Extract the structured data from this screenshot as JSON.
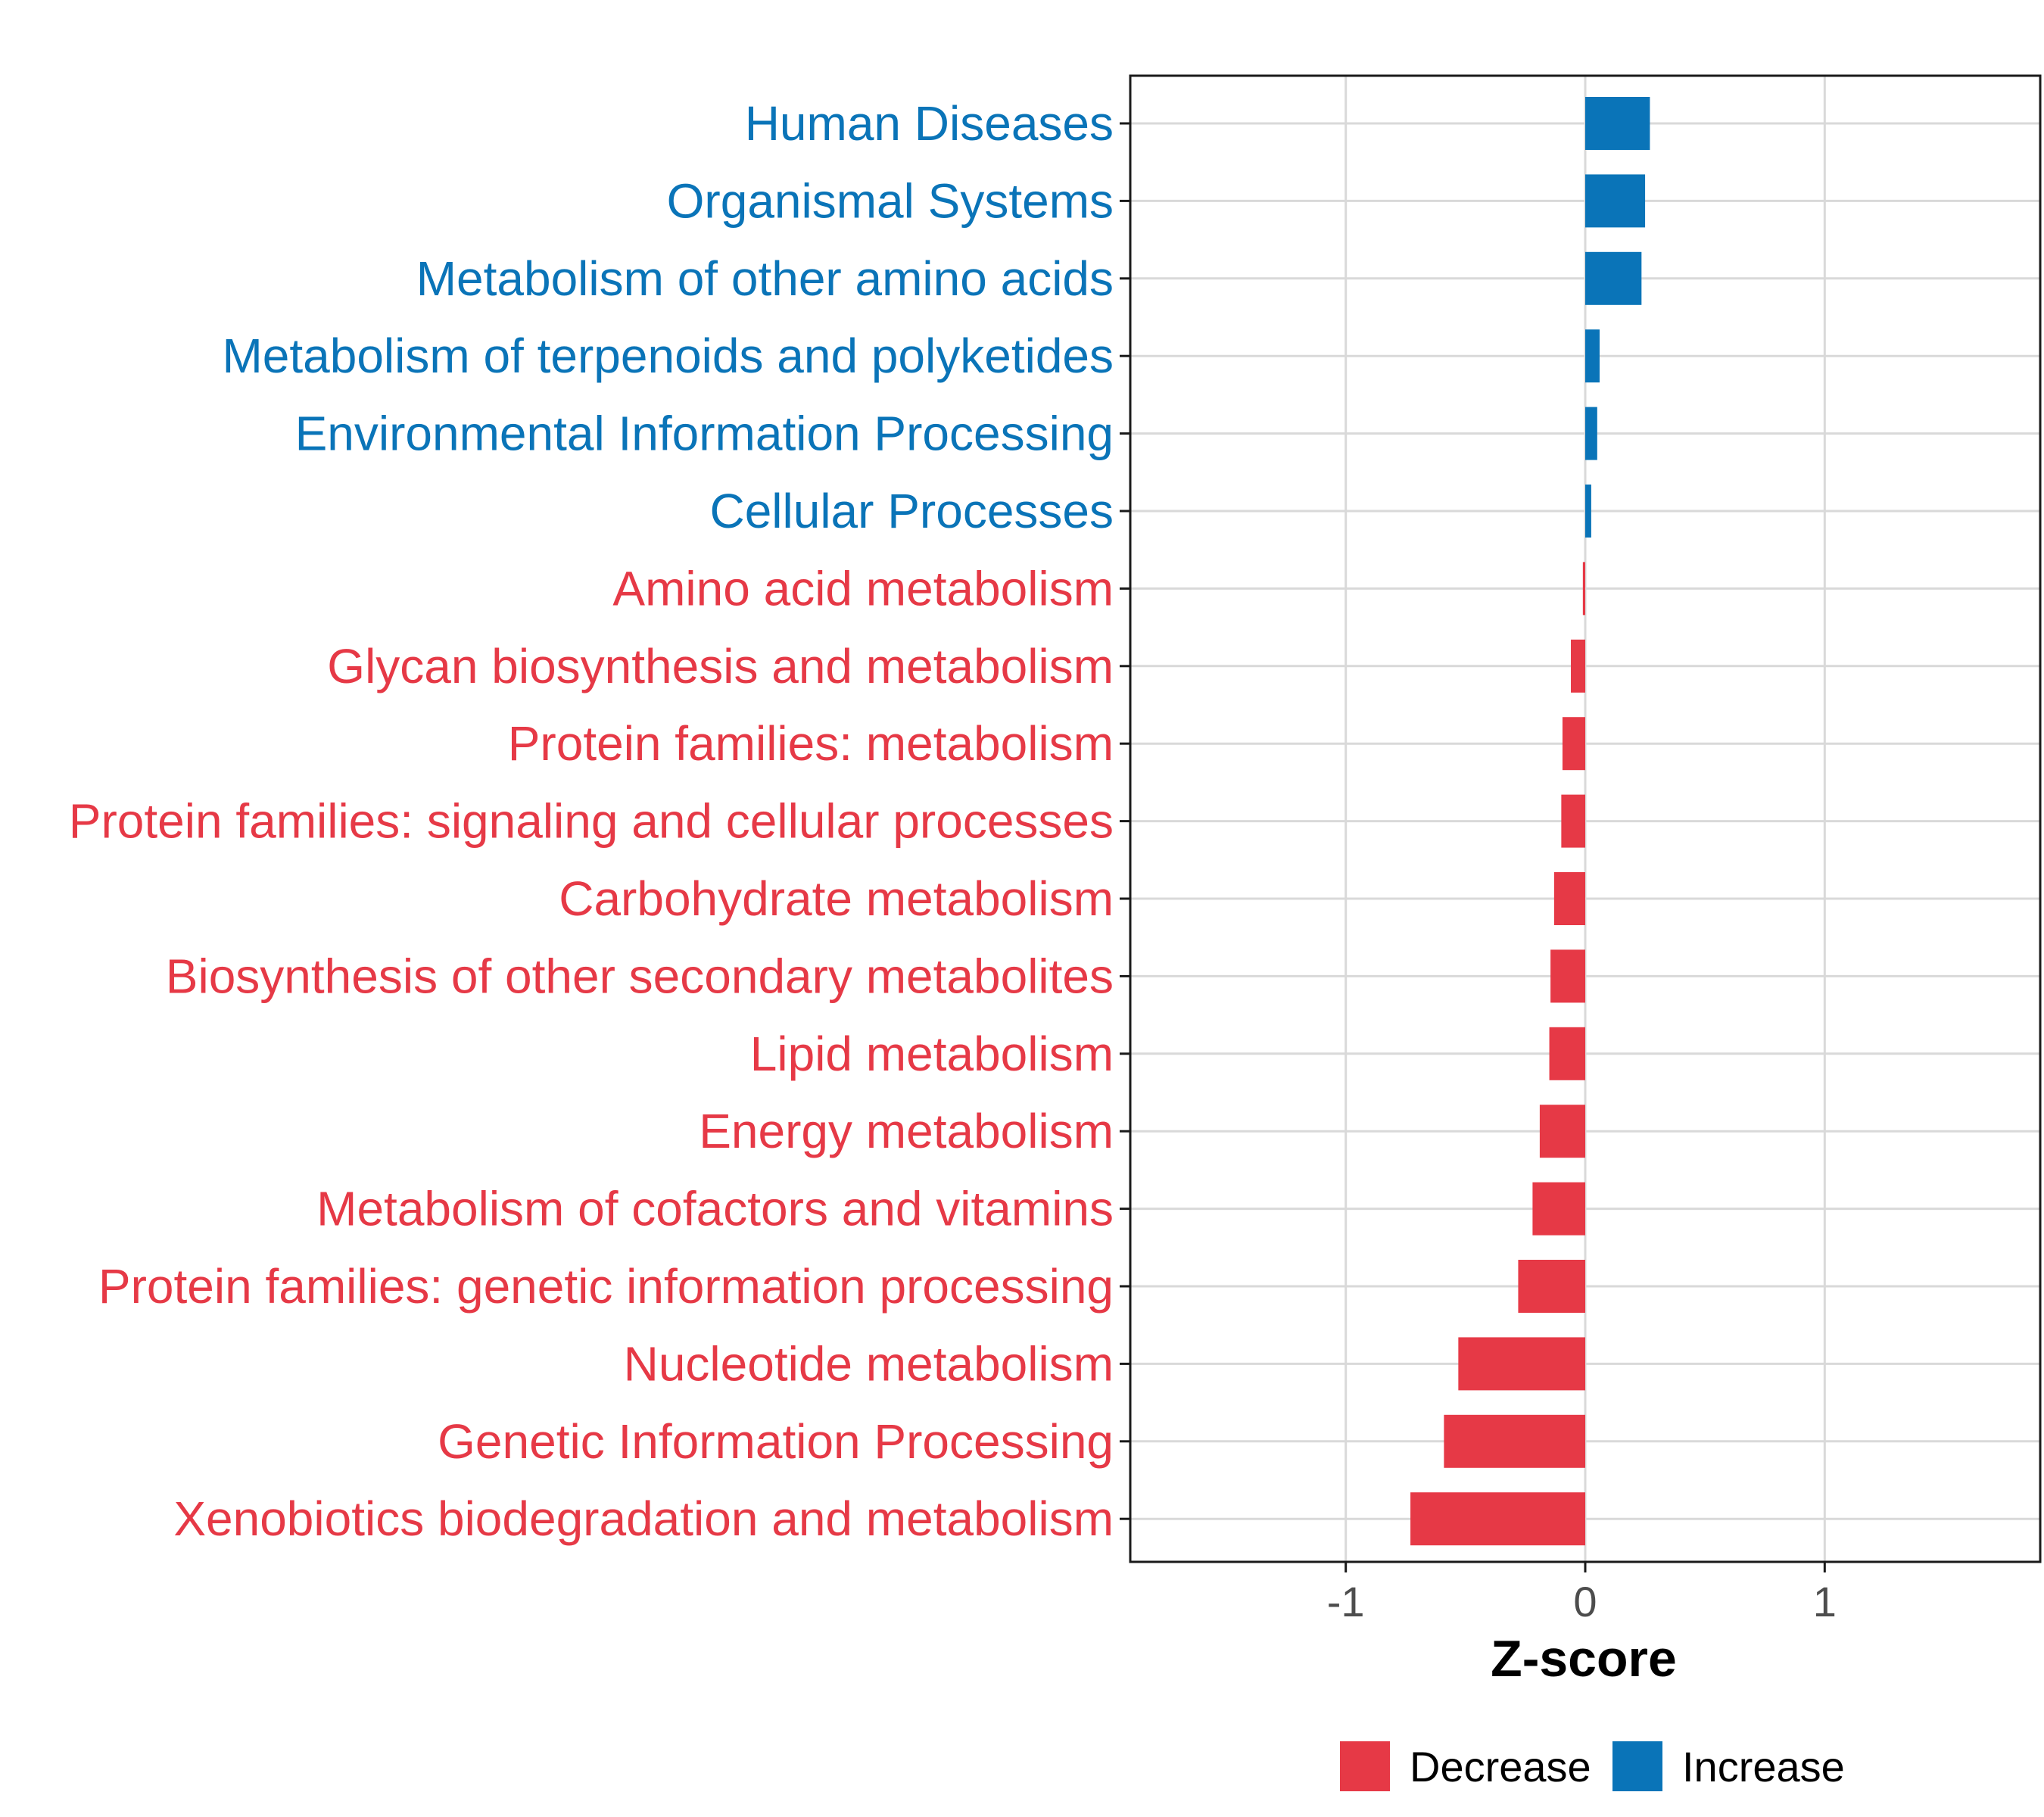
{
  "chart_data": {
    "type": "bar",
    "orientation": "horizontal",
    "xlabel": "Z-score",
    "xlim": [
      -1.9,
      1.9
    ],
    "xticks": [
      -1,
      0,
      1
    ],
    "xtick_labels": [
      "-1",
      "0",
      "1"
    ],
    "grid": true,
    "legend_position": "bottom",
    "colors": {
      "Decrease": "#e63946",
      "Increase": "#0a74b8"
    },
    "legend": [
      {
        "label": "Decrease",
        "color": "#e63946"
      },
      {
        "label": "Increase",
        "color": "#0a74b8"
      }
    ],
    "categories": [
      "Human Diseases",
      "Organismal Systems",
      "Metabolism of other amino acids",
      "Metabolism of terpenoids and polyketides",
      "Environmental Information Processing",
      "Cellular Processes",
      "Amino acid metabolism",
      "Glycan biosynthesis and metabolism",
      "Protein families: metabolism",
      "Protein families: signaling and cellular processes",
      "Carbohydrate metabolism",
      "Biosynthesis of other secondary metabolites",
      "Lipid metabolism",
      "Energy metabolism",
      "Metabolism of cofactors and vitamins",
      "Protein families: genetic information processing",
      "Nucleotide metabolism",
      "Genetic Information Processing",
      "Xenobiotics biodegradation and metabolism"
    ],
    "values": [
      0.27,
      0.25,
      0.235,
      0.06,
      0.05,
      0.025,
      -0.01,
      -0.06,
      -0.095,
      -0.1,
      -0.13,
      -0.145,
      -0.15,
      -0.19,
      -0.22,
      -0.28,
      -0.53,
      -0.59,
      -0.73
    ],
    "direction": [
      "Increase",
      "Increase",
      "Increase",
      "Increase",
      "Increase",
      "Increase",
      "Decrease",
      "Decrease",
      "Decrease",
      "Decrease",
      "Decrease",
      "Decrease",
      "Decrease",
      "Decrease",
      "Decrease",
      "Decrease",
      "Decrease",
      "Decrease",
      "Decrease"
    ]
  }
}
